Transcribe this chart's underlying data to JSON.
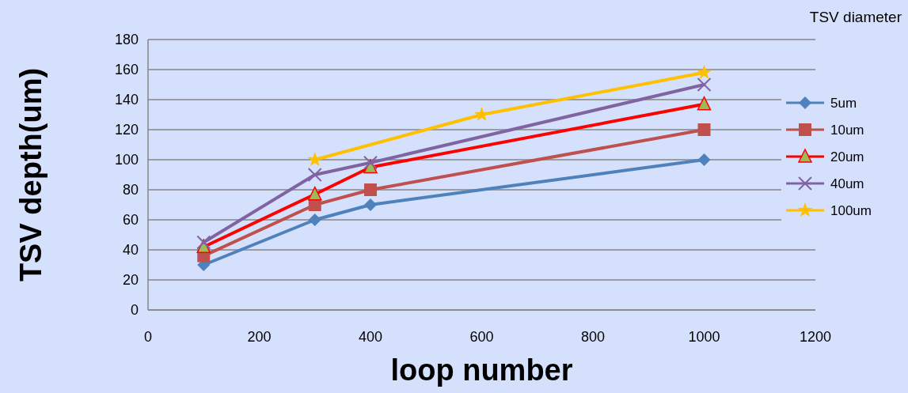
{
  "chart_data": {
    "type": "line",
    "xlabel": "loop number",
    "ylabel": "TSV depth(um)",
    "legend_title": "TSV diameter",
    "xlim": [
      0,
      1200
    ],
    "xticks": [
      0,
      200,
      400,
      600,
      800,
      1000,
      1200
    ],
    "ylim": [
      0,
      180
    ],
    "yticks": [
      0,
      20,
      40,
      60,
      80,
      100,
      120,
      140,
      160,
      180
    ],
    "grid": "y",
    "legend": "right",
    "series": [
      {
        "name": "5um",
        "color": "#4f81bd",
        "marker": "diamond",
        "x": [
          100,
          300,
          400,
          1000
        ],
        "values": [
          30,
          60,
          70,
          100
        ]
      },
      {
        "name": "10um",
        "color": "#c0504d",
        "marker": "square",
        "x": [
          100,
          300,
          400,
          1000
        ],
        "values": [
          36,
          70,
          80,
          120
        ]
      },
      {
        "name": "20um",
        "color": "#ff0000",
        "marker": "triangle",
        "x": [
          100,
          300,
          400,
          1000
        ],
        "values": [
          42,
          77,
          95,
          137
        ]
      },
      {
        "name": "40um",
        "color": "#8064a2",
        "marker": "cross",
        "x": [
          100,
          300,
          400,
          1000
        ],
        "values": [
          45,
          90,
          98,
          150
        ]
      },
      {
        "name": "100um",
        "color": "#ffc000",
        "marker": "star",
        "x": [
          300,
          600,
          1000
        ],
        "values": [
          100,
          130,
          158
        ]
      }
    ]
  }
}
